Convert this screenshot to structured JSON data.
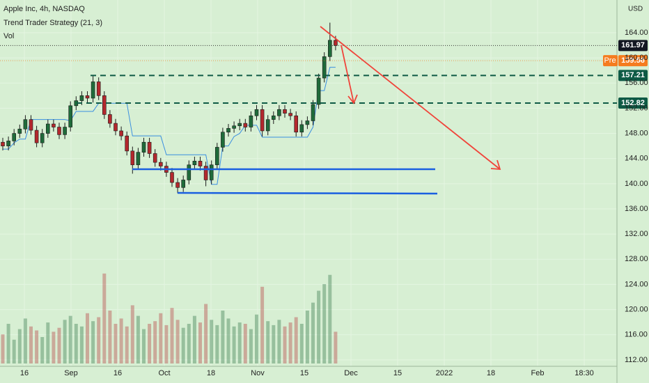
{
  "chart_data": {
    "type": "candlestick",
    "title": "Apple Inc, 4h, NASDAQ",
    "indicator": "Trend Trader Strategy (21, 3)",
    "volume_label": "Vol",
    "currency": "USD",
    "x_labels": [
      "16",
      "Sep",
      "16",
      "Oct",
      "18",
      "Nov",
      "15",
      "Dec",
      "15",
      "2022",
      "18",
      "Feb",
      "18:30"
    ],
    "open": [
      146.6,
      146.0,
      146.8,
      148.0,
      148.7,
      150.2,
      148.5,
      146.5,
      148.0,
      149.5,
      149.0,
      147.8,
      149.0,
      152.4,
      153.2,
      154.0,
      153.6,
      156.2,
      154.0,
      151.0,
      149.6,
      148.4,
      147.6,
      145.2,
      143.0,
      145.0,
      146.6,
      144.8,
      143.4,
      142.8,
      141.8,
      140.2,
      139.4,
      140.6,
      143.0,
      143.6,
      142.8,
      140.6,
      143.0,
      145.8,
      148.2,
      148.8,
      149.2,
      149.6,
      149.0,
      150.8,
      151.8,
      148.4,
      150.2,
      150.8,
      151.8,
      151.2,
      150.8,
      148.2,
      149.4,
      150.0,
      152.6,
      156.8,
      160.2,
      162.8
    ],
    "high": [
      147.3,
      147.5,
      148.7,
      149.4,
      150.9,
      150.9,
      149.2,
      148.7,
      150.2,
      150.2,
      149.7,
      149.7,
      153.1,
      153.9,
      154.7,
      154.7,
      157.2,
      156.9,
      154.7,
      151.7,
      150.3,
      149.1,
      148.3,
      145.9,
      145.7,
      147.3,
      147.3,
      145.5,
      144.1,
      143.5,
      142.5,
      140.9,
      141.3,
      143.7,
      144.3,
      144.3,
      143.5,
      143.7,
      146.5,
      148.9,
      149.5,
      149.9,
      150.3,
      150.3,
      151.5,
      152.5,
      152.5,
      150.9,
      151.5,
      152.5,
      152.5,
      151.9,
      151.5,
      150.1,
      150.7,
      153.3,
      157.5,
      160.9,
      165.6,
      163.5
    ],
    "low": [
      145.3,
      145.3,
      146.1,
      147.3,
      148.0,
      147.8,
      145.8,
      145.8,
      147.3,
      148.3,
      147.1,
      147.1,
      148.3,
      151.7,
      152.5,
      152.9,
      152.9,
      153.3,
      150.3,
      148.9,
      147.7,
      146.9,
      144.5,
      141.6,
      142.3,
      144.3,
      144.1,
      142.7,
      142.1,
      141.1,
      139.5,
      138.5,
      138.7,
      139.9,
      142.3,
      142.1,
      139.6,
      139.9,
      142.3,
      145.1,
      147.5,
      148.1,
      148.5,
      148.3,
      148.3,
      150.1,
      147.5,
      147.7,
      149.5,
      150.1,
      150.5,
      150.1,
      147.5,
      147.5,
      148.7,
      149.3,
      151.9,
      156.1,
      159.5,
      161.2
    ],
    "close": [
      146.0,
      146.8,
      148.0,
      148.7,
      150.2,
      148.5,
      146.5,
      148.0,
      149.5,
      149.0,
      147.8,
      149.0,
      152.4,
      153.2,
      154.0,
      153.6,
      156.2,
      154.0,
      151.0,
      149.6,
      148.4,
      147.6,
      145.2,
      143.0,
      145.0,
      146.6,
      144.8,
      143.4,
      142.8,
      141.8,
      140.2,
      139.4,
      140.6,
      143.0,
      143.6,
      142.8,
      140.6,
      143.0,
      145.8,
      148.2,
      148.8,
      149.2,
      149.6,
      149.0,
      150.8,
      151.8,
      148.4,
      150.2,
      150.8,
      151.8,
      151.2,
      150.8,
      148.2,
      149.4,
      150.0,
      152.6,
      156.8,
      160.2,
      162.8,
      161.97
    ],
    "volume": [
      22,
      30,
      18,
      26,
      34,
      28,
      25,
      20,
      31,
      24,
      27,
      33,
      36,
      30,
      28,
      38,
      32,
      35,
      68,
      40,
      30,
      34,
      28,
      44,
      36,
      26,
      30,
      32,
      38,
      29,
      42,
      33,
      27,
      30,
      36,
      31,
      45,
      33,
      29,
      40,
      34,
      28,
      31,
      30,
      26,
      37,
      58,
      32,
      29,
      33,
      28,
      31,
      35,
      30,
      40,
      46,
      55,
      60,
      67,
      24
    ],
    "trend": {
      "name": "Trend Trader Strategy (21, 3)",
      "color": "#3a8fe0",
      "values": [
        145.5,
        145.5,
        146.5,
        147.1,
        147.1,
        150.2,
        150.2,
        150.2,
        150.2,
        150.2,
        150.2,
        150.2,
        150.0,
        151.5,
        151.5,
        151.5,
        151.5,
        152.8,
        152.8,
        152.8,
        152.8,
        152.8,
        152.8,
        147.6,
        147.6,
        147.6,
        147.6,
        147.6,
        147.6,
        144.6,
        144.6,
        144.6,
        144.6,
        144.6,
        144.6,
        144.6,
        144.6,
        139.9,
        139.9,
        146.0,
        146.0,
        147.5,
        148.0,
        149.3,
        149.3,
        149.3,
        147.4,
        147.4,
        147.4,
        147.4,
        147.4,
        147.4,
        147.4,
        147.4,
        147.4,
        149.0,
        154.8,
        154.8,
        158.5,
        158.5
      ]
    },
    "up_color": "#1f6b3a",
    "down_color": "#b3282d",
    "ylim": [
      111.1,
      169.2
    ],
    "yticks": [
      {
        "value": 112,
        "label": "112.00"
      },
      {
        "value": 116,
        "label": "116.00"
      },
      {
        "value": 120,
        "label": "120.00"
      },
      {
        "value": 124,
        "label": "124.00"
      },
      {
        "value": 128,
        "label": "128.00"
      },
      {
        "value": 132,
        "label": "132.00"
      },
      {
        "value": 136,
        "label": "136.00"
      },
      {
        "value": 140,
        "label": "140.00"
      },
      {
        "value": 144,
        "label": "144.00"
      },
      {
        "value": 148,
        "label": "148.00"
      },
      {
        "value": 152,
        "label": "152.00"
      },
      {
        "value": 156,
        "label": "156.00"
      },
      {
        "value": 160,
        "label": "160.00"
      },
      {
        "value": 164,
        "label": "164.00"
      }
    ],
    "grid": true,
    "last_price": 161.97,
    "premarket": {
      "label": "Pre",
      "value": 159.56,
      "color": "#f57c1f"
    },
    "levels": [
      157.21,
      152.82
    ],
    "level_color": "#0e5a45"
  }
}
